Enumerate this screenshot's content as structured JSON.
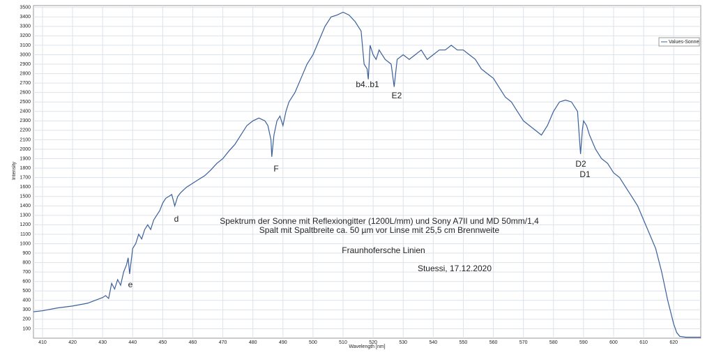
{
  "chart_data": {
    "type": "line",
    "x_label": "Wavelength [nm]",
    "y_label": "Intensity",
    "x": [
      407,
      410,
      415,
      420,
      425,
      430,
      431,
      432,
      433,
      434,
      435,
      436,
      437,
      438,
      438.5,
      439,
      440,
      441,
      442,
      443,
      444,
      445,
      446,
      447,
      448,
      449,
      450,
      451,
      452,
      453,
      454,
      455,
      456,
      457,
      458,
      460,
      462,
      464,
      466,
      468,
      470,
      472,
      474,
      476,
      478,
      480,
      482,
      484,
      485,
      486,
      486.3,
      487,
      488,
      489,
      490,
      491,
      492,
      494,
      496,
      498,
      500,
      502,
      504,
      506,
      508,
      510,
      512,
      514,
      515,
      516,
      517,
      518,
      518.4,
      519,
      520,
      521,
      522,
      524,
      526,
      527,
      528,
      530,
      532,
      534,
      536,
      538,
      540,
      542,
      544,
      546,
      548,
      550,
      552,
      554,
      556,
      558,
      560,
      562,
      564,
      566,
      568,
      570,
      572,
      574,
      576,
      578,
      580,
      582,
      584,
      586,
      588,
      589,
      589.6,
      590,
      591,
      592,
      594,
      596,
      598,
      600,
      602,
      604,
      606,
      608,
      610,
      612,
      614,
      616,
      618,
      620,
      621,
      622,
      624,
      629
    ],
    "series": [
      {
        "name": "Values-Sonne",
        "color": "#3a5f9a",
        "values": [
          280,
          290,
          320,
          340,
          370,
          430,
          450,
          420,
          580,
          520,
          620,
          560,
          700,
          780,
          850,
          680,
          950,
          1000,
          1100,
          1050,
          1150,
          1200,
          1150,
          1250,
          1300,
          1350,
          1430,
          1480,
          1500,
          1520,
          1400,
          1500,
          1540,
          1570,
          1600,
          1640,
          1680,
          1720,
          1780,
          1850,
          1900,
          1980,
          2050,
          2150,
          2250,
          2300,
          2330,
          2300,
          2250,
          2100,
          1920,
          2150,
          2300,
          2350,
          2250,
          2400,
          2500,
          2600,
          2750,
          2900,
          3000,
          3150,
          3300,
          3400,
          3420,
          3450,
          3420,
          3350,
          3300,
          3250,
          2900,
          2850,
          2740,
          3100,
          3000,
          2950,
          3050,
          2950,
          2900,
          2660,
          2950,
          3000,
          2950,
          3000,
          3050,
          2950,
          3000,
          3050,
          3050,
          3100,
          3050,
          3050,
          3000,
          2950,
          2850,
          2800,
          2750,
          2650,
          2550,
          2500,
          2400,
          2300,
          2250,
          2200,
          2150,
          2250,
          2400,
          2500,
          2520,
          2500,
          2400,
          1950,
          2200,
          2300,
          2250,
          2150,
          2000,
          1900,
          1850,
          1750,
          1700,
          1600,
          1500,
          1400,
          1250,
          1100,
          950,
          700,
          400,
          150,
          60,
          20,
          10,
          10
        ]
      }
    ],
    "xlim": [
      407,
      629
    ],
    "ylim": [
      0,
      3520
    ],
    "xticks": [
      410,
      420,
      430,
      440,
      450,
      460,
      470,
      480,
      490,
      500,
      510,
      520,
      530,
      540,
      550,
      560,
      570,
      580,
      590,
      600,
      610,
      620
    ],
    "yticks": [
      100,
      200,
      300,
      400,
      500,
      600,
      700,
      800,
      900,
      1000,
      1100,
      1200,
      1300,
      1400,
      1500,
      1600,
      1700,
      1800,
      1900,
      2000,
      2100,
      2200,
      2300,
      2400,
      2500,
      2600,
      2700,
      2800,
      2900,
      3000,
      3100,
      3200,
      3300,
      3400,
      3500
    ],
    "grid": true,
    "legend": "upper right",
    "annotations": [
      "b4..b1",
      "E2",
      "F",
      "D2",
      "D1",
      "d",
      "e",
      "Spektrum der Sonne mit Reflexiongitter (1200L/mm) und Sony A7II und MD 50mm/1,4",
      "Spalt mit Spaltbreite ca. 50 µm vor Linse mit 25,5 cm Brennweite",
      "Fraunhofersche Linien",
      "Stuessi, 17.12.2020"
    ]
  }
}
